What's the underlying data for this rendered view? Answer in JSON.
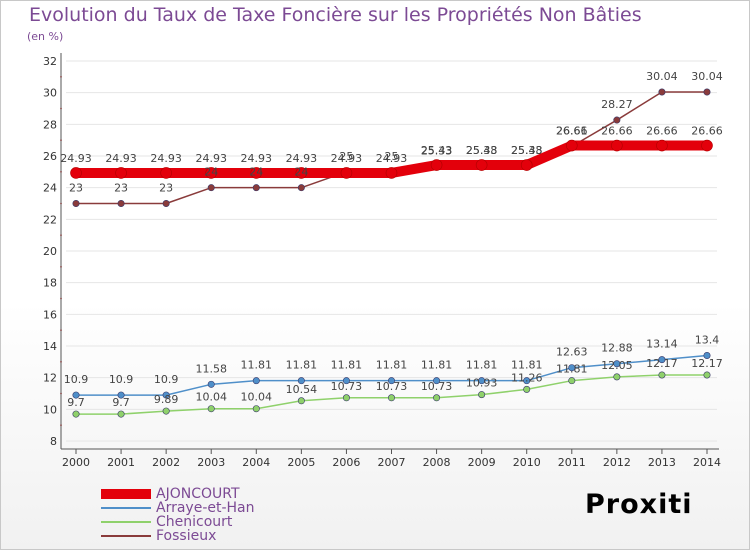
{
  "title": "Evolution du Taux de Taxe Foncière sur les Propriétés Non Bâties",
  "unit_label": "(en %)",
  "logo_text": "Proxiti",
  "chart_data": {
    "type": "line",
    "title": "Evolution du Taux de Taxe Foncière sur les Propriétés Non Bâties",
    "ylabel": "(en %)",
    "xlabel": "",
    "ylim": [
      8,
      32
    ],
    "yticks": [
      8,
      10,
      12,
      14,
      16,
      18,
      20,
      22,
      24,
      26,
      28,
      30,
      32
    ],
    "x": [
      "2000",
      "2001",
      "2002",
      "2003",
      "2004",
      "2005",
      "2006",
      "2007",
      "2008",
      "2009",
      "2010",
      "2011",
      "2012",
      "2013",
      "2014"
    ],
    "series": [
      {
        "name": "AJONCOURT",
        "color": "#e3000b",
        "values": [
          24.93,
          24.93,
          24.93,
          24.93,
          24.93,
          24.93,
          24.93,
          24.93,
          25.43,
          25.43,
          25.43,
          26.66,
          26.66,
          26.66,
          26.66
        ],
        "labels": [
          "24.93",
          "24.93",
          "24.93",
          "24.93",
          "24.93",
          "24.93",
          "24.93",
          "24.93",
          "25.43",
          "25.43",
          "25.43",
          "26.66",
          "26.66",
          "26.66",
          "26.66"
        ]
      },
      {
        "name": "Arraye-et-Han",
        "color": "#4f8fc9",
        "values": [
          10.9,
          10.9,
          10.9,
          11.58,
          11.81,
          11.81,
          11.81,
          11.81,
          11.81,
          11.81,
          11.81,
          12.63,
          12.88,
          13.14,
          13.4
        ],
        "labels": [
          "10.9",
          "10.9",
          "10.9",
          "11.58",
          "11.81",
          "11.81",
          "11.81",
          "11.81",
          "11.81",
          "11.81",
          "11.81",
          "12.63",
          "12.88",
          "13.14",
          "13.4"
        ]
      },
      {
        "name": "Chenicourt",
        "color": "#8fd16b",
        "values": [
          9.7,
          9.7,
          9.89,
          10.04,
          10.04,
          10.54,
          10.73,
          10.73,
          10.73,
          10.93,
          11.26,
          11.81,
          12.05,
          12.17,
          12.17
        ],
        "labels": [
          "9.7",
          "9.7",
          "9.89",
          "10.04",
          "10.04",
          "10.54",
          "10.73",
          "10.73",
          "10.73",
          "10.93",
          "11.26",
          "11.81",
          "12.05",
          "12.17",
          "12.17"
        ]
      },
      {
        "name": "Fossieux",
        "color": "#8a3b3b",
        "values": [
          23,
          23,
          23,
          24,
          24,
          24,
          25,
          25,
          25.33,
          25.38,
          25.38,
          26.61,
          28.27,
          30.04,
          30.04
        ],
        "labels": [
          "23",
          "23",
          "23",
          "24",
          "24",
          "24",
          "25",
          "25",
          "25.33",
          "25.38",
          "25.38",
          "26.61",
          "28.27",
          "30.04",
          "30.04"
        ]
      }
    ]
  }
}
